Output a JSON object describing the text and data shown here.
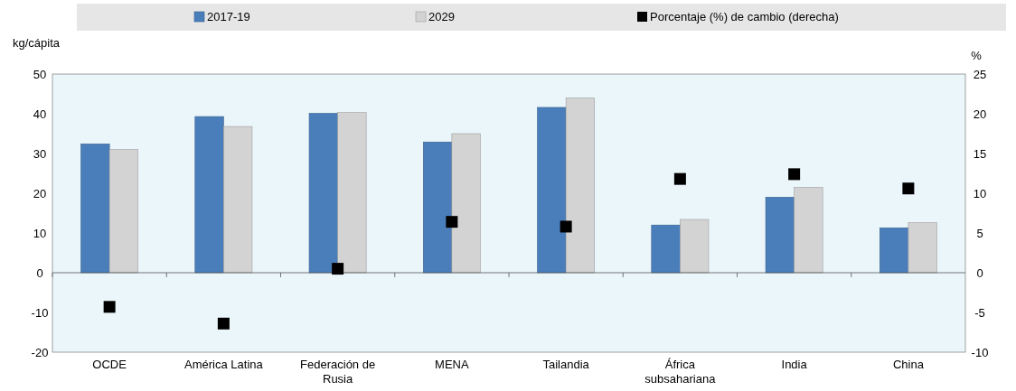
{
  "chart_data": {
    "type": "bar",
    "categories": [
      "OCDE",
      "América Latina",
      "Federación de Rusia",
      "MENA",
      "Tailandia",
      "África subsahariana",
      "India",
      "China"
    ],
    "ylabel": "kg/cápita",
    "y2label": "%",
    "ylim": [
      -20,
      50
    ],
    "yticks": [
      -20,
      -10,
      0,
      10,
      20,
      30,
      40,
      50
    ],
    "y2lim": [
      -10,
      25
    ],
    "y2ticks": [
      -10,
      -5,
      0,
      5,
      10,
      15,
      20,
      25
    ],
    "legend": "top",
    "marker": "square",
    "series": [
      {
        "name": "2017-19",
        "color": "#4a7ebb",
        "values": [
          32.4,
          39.3,
          40.1,
          32.9,
          41.6,
          12,
          19,
          11.3
        ]
      },
      {
        "name": "2029",
        "color": "#d3d3d3",
        "values": [
          31,
          36.8,
          40.3,
          35,
          44,
          13.4,
          21.5,
          12.6
        ]
      },
      {
        "name": "Porcentaje (%) de cambio (derecha)",
        "type": "scatter",
        "axis": "y2",
        "color": "#000000",
        "values": [
          -4.3,
          -6.4,
          0.5,
          6.4,
          5.8,
          11.8,
          12.4,
          10.6
        ]
      }
    ]
  }
}
